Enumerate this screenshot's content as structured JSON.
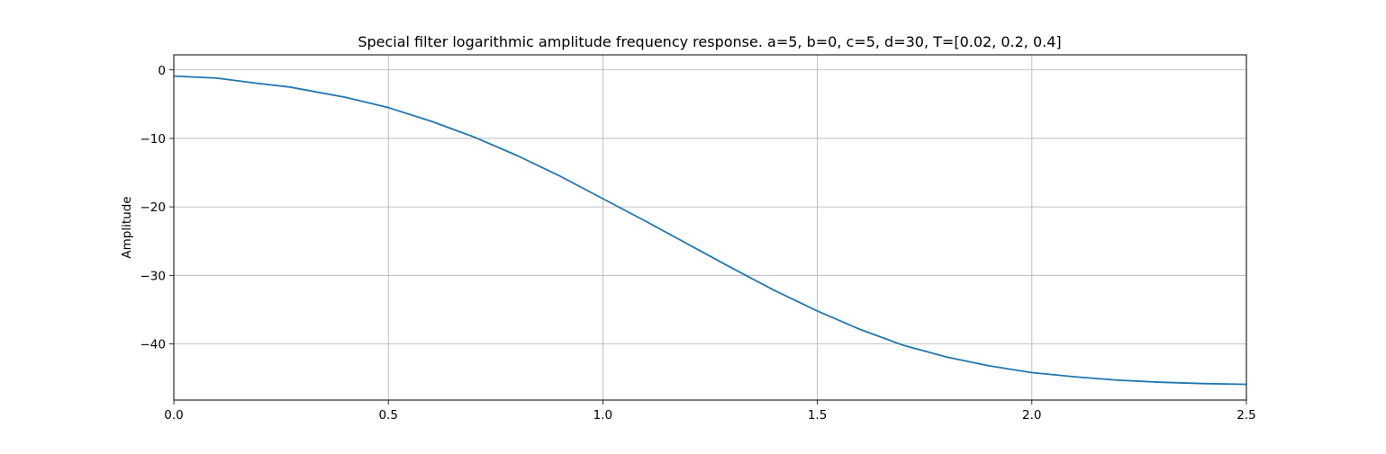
{
  "chart_data": {
    "type": "line",
    "title": "Special filter logarithmic amplitude frequency response. a=5, b=0, c=5, d=30, T=[0.02, 0.2, 0.4]",
    "xlabel": "",
    "ylabel": "Amplitude",
    "xlim": [
      0,
      2.5
    ],
    "ylim": [
      -48.2,
      2.2
    ],
    "grid": true,
    "xticks": [
      0.0,
      0.5,
      1.0,
      1.5,
      2.0,
      2.5
    ],
    "xtick_labels": [
      "0.0",
      "0.5",
      "1.0",
      "1.5",
      "2.0",
      "2.5"
    ],
    "yticks": [
      0,
      -10,
      -20,
      -30,
      -40
    ],
    "ytick_labels": [
      "0",
      "−10",
      "−20",
      "−30",
      "−40"
    ],
    "series": [
      {
        "color": "#1f77b4",
        "x": [
          0.0,
          0.1,
          0.2,
          0.27,
          0.4,
          0.5,
          0.6,
          0.7,
          0.8,
          0.9,
          1.0,
          1.1,
          1.2,
          1.3,
          1.4,
          1.5,
          1.6,
          1.7,
          1.8,
          1.9,
          2.0,
          2.1,
          2.2,
          2.3,
          2.4,
          2.5
        ],
        "y": [
          -0.9,
          -1.2,
          -2.0,
          -2.5,
          -4.0,
          -5.5,
          -7.5,
          -9.8,
          -12.5,
          -15.5,
          -18.8,
          -22.1,
          -25.5,
          -28.9,
          -32.2,
          -35.2,
          -37.9,
          -40.2,
          -41.9,
          -43.2,
          -44.2,
          -44.8,
          -45.3,
          -45.6,
          -45.8,
          -45.9
        ]
      }
    ]
  }
}
